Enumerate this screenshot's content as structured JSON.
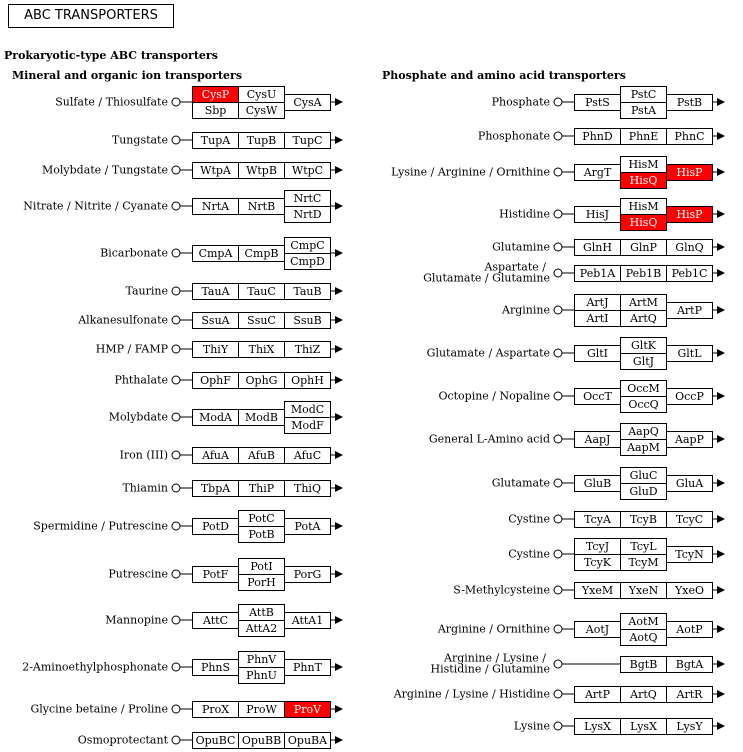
{
  "title": "ABC TRANSPORTERS",
  "section_title": "Prokaryotic-type ABC transporters",
  "columns": [
    {
      "header": "Mineral and organic ion transporters",
      "rows": [
        {
          "label": "Sulfate / Thiosulfate",
          "boxes": [
            "CysP|Sbp",
            "CysU|CysW",
            "CysA"
          ],
          "highlighted": [
            "CysP"
          ]
        },
        {
          "label": "Tungstate",
          "boxes": [
            "TupA",
            "TupB",
            "TupC"
          ]
        },
        {
          "label": "Molybdate / Tungstate",
          "boxes": [
            "WtpA",
            "WtpB",
            "WtpC"
          ]
        },
        {
          "label": "Nitrate / Nitrite / Cyanate",
          "boxes": [
            "NrtA",
            "NrtB",
            "NrtC|NrtD"
          ]
        },
        {
          "label": "Bicarbonate",
          "boxes": [
            "CmpA",
            "CmpB",
            "CmpC|CmpD"
          ]
        },
        {
          "label": "Taurine",
          "boxes": [
            "TauA",
            "TauC",
            "TauB"
          ]
        },
        {
          "label": "Alkanesulfonate",
          "boxes": [
            "SsuA",
            "SsuC",
            "SsuB"
          ]
        },
        {
          "label": "HMP / FAMP",
          "boxes": [
            "ThiY",
            "ThiX",
            "ThiZ"
          ]
        },
        {
          "label": "Phthalate",
          "boxes": [
            "OphF",
            "OphG",
            "OphH"
          ]
        },
        {
          "label": "Molybdate",
          "boxes": [
            "ModA",
            "ModB",
            "ModC|ModF"
          ]
        },
        {
          "label": "Iron (III)",
          "boxes": [
            "AfuA",
            "AfuB",
            "AfuC"
          ]
        },
        {
          "label": "Thiamin",
          "boxes": [
            "TbpA",
            "ThiP",
            "ThiQ"
          ]
        },
        {
          "label": "Spermidine / Putrescine",
          "boxes": [
            "PotD",
            "PotC|PotB",
            "PotA"
          ]
        },
        {
          "label": "Putrescine",
          "boxes": [
            "PotF",
            "PotI|PorH",
            "PorG"
          ]
        },
        {
          "label": "Mannopine",
          "boxes": [
            "AttC",
            "AttB|AttA2",
            "AttA1"
          ]
        },
        {
          "label": "2-Aminoethylphosphonate",
          "boxes": [
            "PhnS",
            "PhnV|PhnU",
            "PhnT"
          ]
        },
        {
          "label": "Glycine betaine / Proline",
          "boxes": [
            "ProX",
            "ProW",
            "ProV"
          ],
          "highlighted": [
            "ProV"
          ]
        },
        {
          "label": "Osmoprotectant",
          "boxes": [
            "OpuBC",
            "OpuBB",
            "OpuBA"
          ]
        }
      ]
    },
    {
      "header": "Phosphate and amino acid transporters",
      "rows": [
        {
          "label": "Phosphate",
          "boxes": [
            "PstS",
            "PstC|PstA",
            "PstB"
          ]
        },
        {
          "label": "Phosphonate",
          "boxes": [
            "PhnD",
            "PhnE",
            "PhnC"
          ]
        },
        {
          "label": "Lysine / Arginine / Ornithine",
          "boxes": [
            "ArgT",
            "HisM|HisQ",
            "HisP"
          ],
          "highlighted": [
            "HisQ",
            "HisP"
          ]
        },
        {
          "label": "Histidine",
          "boxes": [
            "HisJ",
            "HisM|HisQ",
            "HisP"
          ],
          "highlighted": [
            "HisQ",
            "HisP"
          ]
        },
        {
          "label": "Glutamine",
          "boxes": [
            "GlnH",
            "GlnP",
            "GlnQ"
          ]
        },
        {
          "label": "Aspartate /|Glutamate / Glutamine",
          "boxes": [
            "Peb1A",
            "Peb1B",
            "Peb1C"
          ]
        },
        {
          "label": "Arginine",
          "boxes": [
            "ArtJ|ArtI",
            "ArtM|ArtQ",
            "ArtP"
          ]
        },
        {
          "label": "Glutamate / Aspartate",
          "boxes": [
            "GltI",
            "GltK|GltJ",
            "GltL"
          ]
        },
        {
          "label": "Octopine / Nopaline",
          "boxes": [
            "OccT",
            "OccM|OccQ",
            "OccP"
          ]
        },
        {
          "label": "General L-Amino acid",
          "boxes": [
            "AapJ",
            "AapQ|AapM",
            "AapP"
          ]
        },
        {
          "label": "Glutamate",
          "boxes": [
            "GluB",
            "GluC|GluD",
            "GluA"
          ]
        },
        {
          "label": "Cystine",
          "boxes": [
            "TcyA",
            "TcyB",
            "TcyC"
          ]
        },
        {
          "label": "Cystine",
          "boxes": [
            "TcyJ|TcyK",
            "TcyL|TcyM",
            "TcyN"
          ]
        },
        {
          "label": "S-Methylcysteine",
          "boxes": [
            "YxeM",
            "YxeN",
            "YxeO"
          ]
        },
        {
          "label": "Arginine / Ornithine",
          "boxes": [
            "AotJ",
            "AotM|AotQ",
            "AotP"
          ]
        },
        {
          "label": "Arginine / Lysine /|Histidine / Glutamine",
          "boxes": [
            "",
            "BgtB",
            "BgtA"
          ]
        },
        {
          "label": "Arginine / Lysine / Histidine",
          "boxes": [
            "ArtP",
            "ArtQ",
            "ArtR"
          ]
        },
        {
          "label": "Lysine",
          "boxes": [
            "LysX",
            "LysX",
            "LysY"
          ]
        }
      ]
    }
  ],
  "colors": {
    "highlight": "#ff0000",
    "line": "#000000",
    "background": "#ffffff"
  }
}
